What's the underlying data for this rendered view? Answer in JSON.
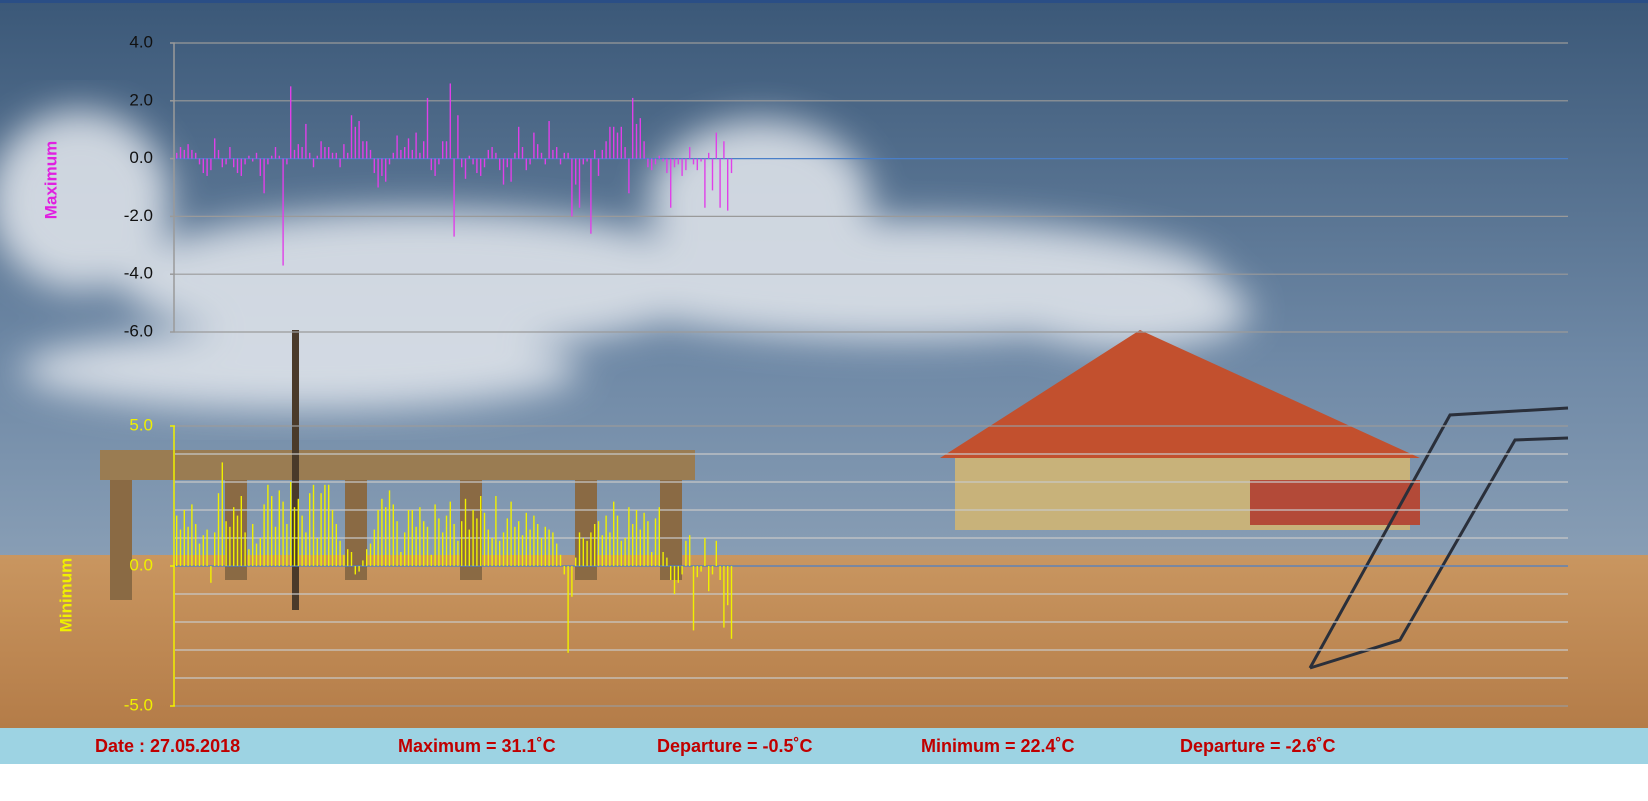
{
  "chart_data": [
    {
      "type": "bar",
      "y_label": "Maximum",
      "color": "#e040e8",
      "label_color": "#e020e0",
      "axis_color": "#9a9a9a",
      "zero_line_color": "#4a7fc8",
      "grid": true,
      "ylim": [
        -6,
        4
      ],
      "yticks": [
        {
          "value": 4,
          "label": "4.0"
        },
        {
          "value": 2,
          "label": "2.0"
        },
        {
          "value": 0,
          "label": "0.0"
        },
        {
          "value": -2,
          "label": "-2.0"
        },
        {
          "value": -4,
          "label": "-4.0"
        },
        {
          "value": -6,
          "label": "-6.0"
        }
      ],
      "values": [
        0.2,
        0.4,
        0.3,
        0.5,
        0.3,
        0.2,
        -0.2,
        -0.5,
        -0.6,
        -0.4,
        0.7,
        0.3,
        -0.3,
        -0.2,
        0.4,
        -0.3,
        -0.5,
        -0.6,
        -0.2,
        0.1,
        -0.1,
        0.2,
        -0.6,
        -1.2,
        -0.2,
        0.1,
        0.4,
        0.1,
        -3.7,
        -0.2,
        2.5,
        0.3,
        0.5,
        0.4,
        1.2,
        0.2,
        -0.3,
        0.1,
        0.6,
        0.4,
        0.4,
        0.2,
        0.2,
        -0.3,
        0.5,
        0.2,
        1.5,
        1.1,
        1.3,
        0.6,
        0.6,
        0.3,
        -0.5,
        -1.0,
        -0.6,
        -0.8,
        -0.2,
        0.2,
        0.8,
        0.3,
        0.4,
        0.7,
        0.3,
        0.9,
        0.2,
        0.6,
        2.1,
        -0.4,
        -0.6,
        -0.2,
        0.6,
        0.6,
        2.6,
        -2.7,
        1.5,
        -0.3,
        -0.7,
        0.1,
        -0.2,
        -0.5,
        -0.6,
        -0.3,
        0.3,
        0.4,
        0.2,
        -0.4,
        -0.9,
        -0.3,
        -0.8,
        0.2,
        1.1,
        0.4,
        -0.4,
        -0.2,
        0.9,
        0.5,
        0.2,
        -0.2,
        1.3,
        0.3,
        0.4,
        -0.2,
        0.2,
        0.2,
        -2.0,
        -0.9,
        -1.7,
        -0.2,
        -0.1,
        -2.6,
        0.3,
        -0.6,
        0.3,
        0.6,
        1.1,
        1.1,
        0.9,
        1.1,
        0.4,
        -1.2,
        2.1,
        1.2,
        1.4,
        0.6,
        -0.3,
        -0.4,
        -0.2,
        0.1,
        -0.1,
        -0.5,
        -1.7,
        -0.3,
        -0.2,
        -0.6,
        -0.4,
        0.4,
        -0.2,
        -0.4,
        -0.1,
        -1.7,
        0.2,
        -1.1,
        0.9,
        -1.7,
        0.6,
        -1.8,
        -0.5
      ]
    },
    {
      "type": "bar",
      "y_label": "Minimum",
      "color": "#f0f000",
      "label_color": "#f0f000",
      "axis_color": "#f0f000",
      "zero_line_color": "#4a7fc8",
      "grid": true,
      "ylim": [
        -5,
        5
      ],
      "yticks": [
        {
          "value": 5,
          "label": "5.0"
        },
        {
          "value": 0,
          "label": "0.0"
        },
        {
          "value": -5,
          "label": "-5.0"
        }
      ],
      "minor_gridlines": [
        4,
        3,
        2,
        1,
        -1,
        -2,
        -3,
        -4
      ],
      "values": [
        1.8,
        1.3,
        2.0,
        1.4,
        2.2,
        1.5,
        0.8,
        1.1,
        1.3,
        -0.6,
        1.2,
        2.6,
        3.7,
        1.6,
        1.4,
        2.1,
        1.8,
        2.5,
        1.2,
        0.6,
        1.5,
        0.8,
        1.0,
        2.2,
        2.9,
        2.5,
        1.4,
        2.7,
        2.3,
        1.5,
        3.0,
        2.1,
        2.4,
        1.8,
        1.2,
        2.6,
        2.9,
        1.0,
        2.6,
        2.9,
        2.9,
        2.0,
        1.5,
        0.9,
        0.4,
        0.6,
        0.5,
        -0.3,
        -0.2,
        0.2,
        0.6,
        0.8,
        1.3,
        2.0,
        2.4,
        2.1,
        2.7,
        2.2,
        1.6,
        0.5,
        1.2,
        2.0,
        2.0,
        1.4,
        2.1,
        1.6,
        1.4,
        0.4,
        2.2,
        1.7,
        1.2,
        1.8,
        2.3,
        1.5,
        0.9,
        1.6,
        2.4,
        1.3,
        2.0,
        1.7,
        2.5,
        1.9,
        1.3,
        1.0,
        2.5,
        0.9,
        1.2,
        1.7,
        2.3,
        1.4,
        1.6,
        1.1,
        1.9,
        1.3,
        1.8,
        1.5,
        1.0,
        1.4,
        1.3,
        1.2,
        0.8,
        0.4,
        -0.3,
        -3.1,
        -1.1,
        0.3,
        1.2,
        1.0,
        0.9,
        1.2,
        1.5,
        1.6,
        1.1,
        1.8,
        1.2,
        2.3,
        1.8,
        0.9,
        1.0,
        2.1,
        1.5,
        2.0,
        1.3,
        1.9,
        1.6,
        0.5,
        1.7,
        2.1,
        0.5,
        0.3,
        -0.5,
        -1.0,
        -0.6,
        -0.3,
        0.9,
        1.1,
        -2.3,
        -0.4,
        -0.2,
        1.0,
        -0.9,
        -0.3,
        0.9,
        -0.5,
        -2.2,
        -1.4,
        -2.6
      ]
    }
  ],
  "footer": [
    "Date : 27.05.2018",
    "Maximum = 31.1˚C",
    "Departure = -0.5˚C",
    "Minimum = 22.4˚C",
    "Departure = -2.6˚C"
  ]
}
